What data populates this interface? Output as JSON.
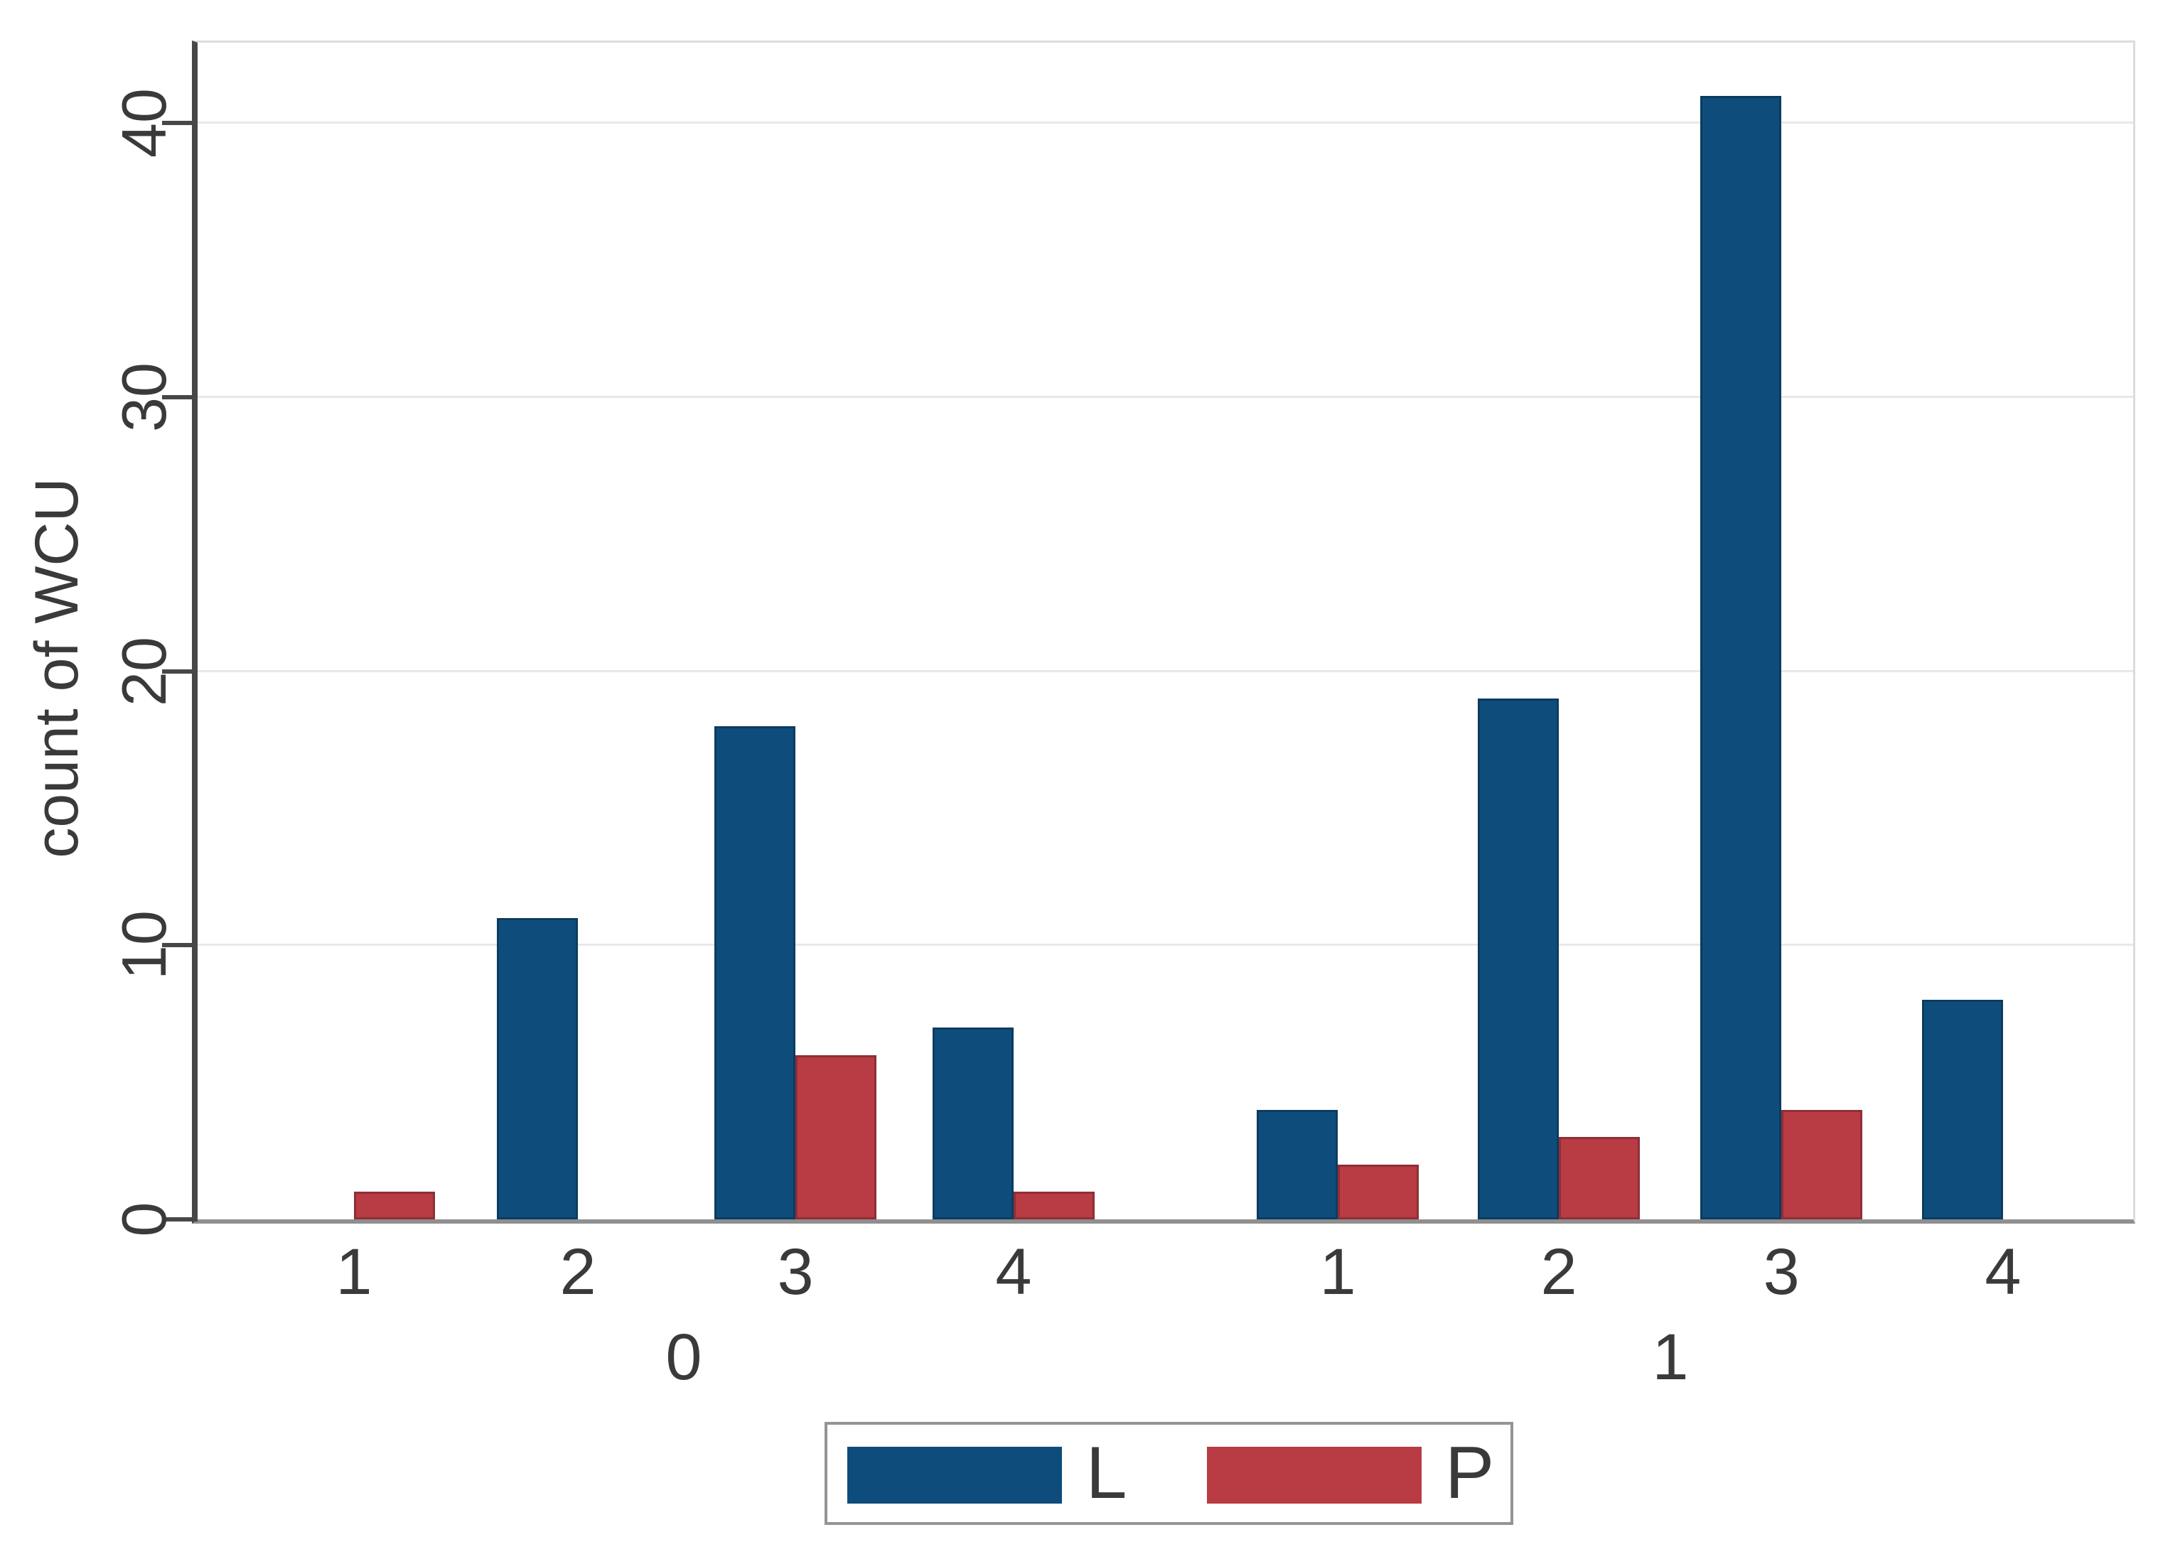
{
  "y_axis": {
    "title": "count of WCU",
    "tick_labels": [
      "0",
      "10",
      "20",
      "30",
      "40"
    ]
  },
  "x_axis": {
    "groups": [
      {
        "label": "0",
        "category_labels": [
          "1",
          "2",
          "3",
          "4"
        ]
      },
      {
        "label": "1",
        "category_labels": [
          "1",
          "2",
          "3",
          "4"
        ]
      }
    ]
  },
  "legend": {
    "entries": [
      {
        "label": "L",
        "color": "#0e4d7b"
      },
      {
        "label": "P",
        "color": "#b93b43"
      }
    ]
  },
  "colors": {
    "bar_blue": "#0e4d7b",
    "bar_blue_border": "#0b3c60",
    "bar_red": "#b93b43",
    "bar_red_border": "#8e2f36",
    "gridline": "#e8e8e8",
    "baseline": "#8f8f8f",
    "axis": "#47474a",
    "text": "#3a3a3a"
  },
  "chart_data": {
    "type": "bar",
    "title": "",
    "xlabel": "",
    "ylabel": "count of WCU",
    "ylim": [
      0,
      43
    ],
    "yticks": [
      0,
      10,
      20,
      30,
      40
    ],
    "grid": true,
    "legend_position": "bottom",
    "group_variable_values": [
      "0",
      "1"
    ],
    "categories": [
      "1",
      "2",
      "3",
      "4"
    ],
    "series": [
      {
        "name": "L",
        "color": "#0e4d7b",
        "values_by_group": [
          [
            0,
            11,
            18,
            7
          ],
          [
            4,
            19,
            41,
            8
          ]
        ]
      },
      {
        "name": "P",
        "color": "#b93b43",
        "values_by_group": [
          [
            1,
            0,
            6,
            1
          ],
          [
            2,
            3,
            4,
            0
          ]
        ]
      }
    ]
  }
}
